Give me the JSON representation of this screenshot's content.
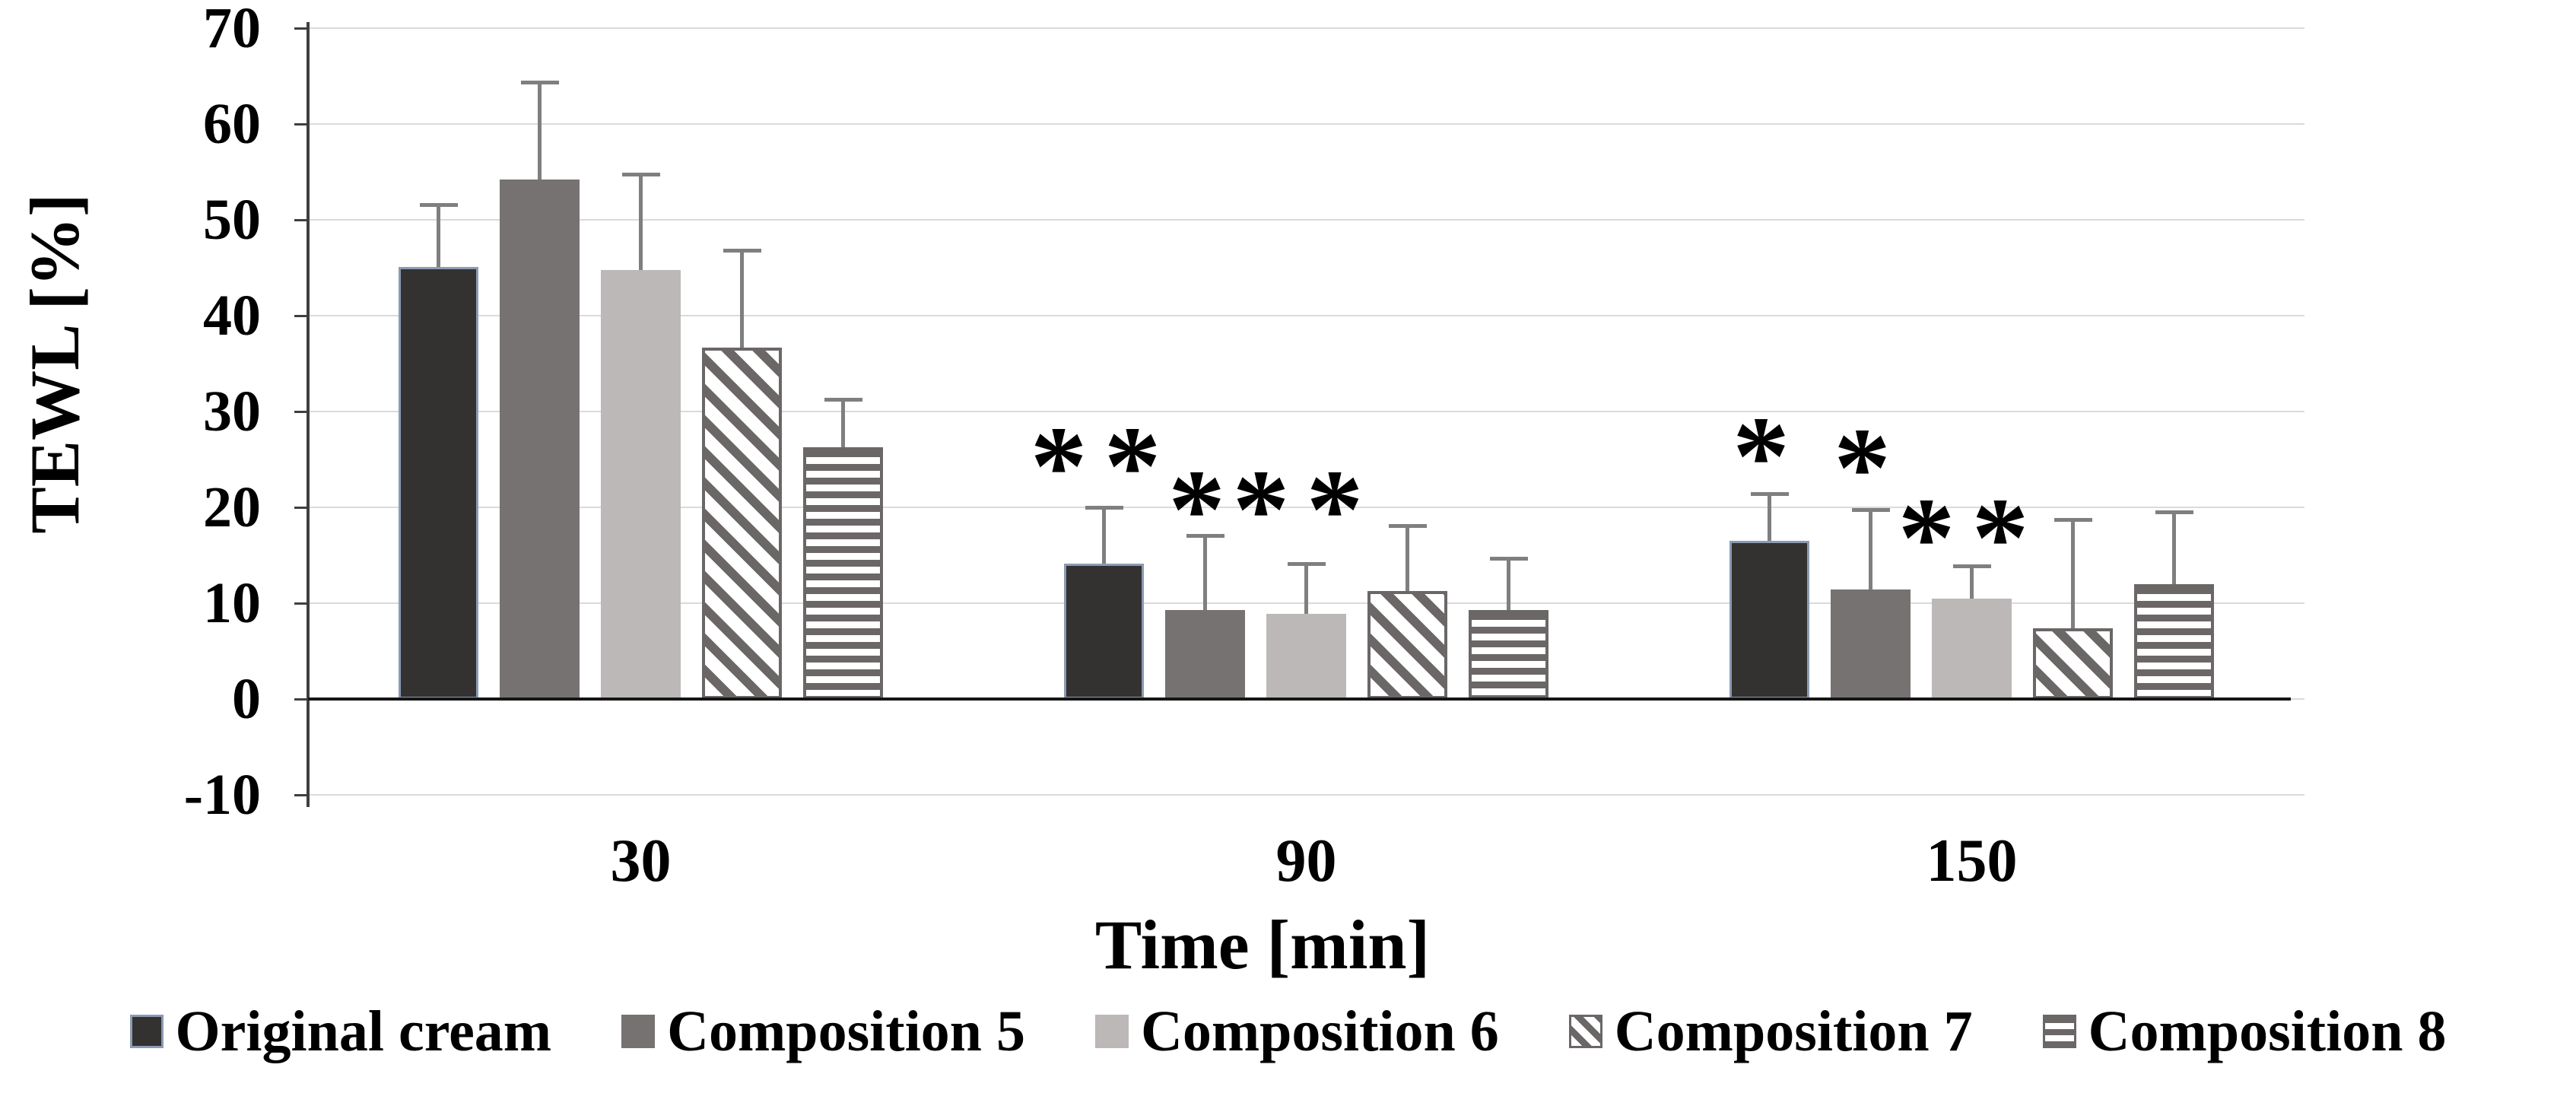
{
  "figure": {
    "background": "#ffffff",
    "significance_marks": {
      "single": "*",
      "double": "**"
    }
  },
  "colors": {
    "original_cream_fill": "#333230",
    "original_cream_border": "#8b9bb4",
    "composition5_fill": "#777272",
    "composition6_fill": "#bcb8b8",
    "hatch_stroke": "#6b6767",
    "error_bar": "#7f7f7f",
    "gridline": "#dadada",
    "axis": "#3f3f3f",
    "text": "#000000"
  },
  "chart_data": {
    "type": "bar",
    "title": "",
    "xlabel": "Time [min]",
    "ylabel": "TEWL [%]",
    "ylim": [
      -10,
      70
    ],
    "ytick_step": 10,
    "yticks": [
      70,
      60,
      50,
      40,
      30,
      20,
      10,
      0,
      -10
    ],
    "grid": true,
    "legend_position": "bottom",
    "categories": [
      "30",
      "90",
      "150"
    ],
    "series": [
      {
        "name": "Original cream",
        "pattern": "solid-dark",
        "values": [
          45.1,
          14.1,
          16.5
        ],
        "errors": [
          6.5,
          5.9,
          4.9
        ],
        "annotations": [
          "",
          "**",
          "*"
        ],
        "annotation_y": [
          null,
          23.5,
          24.5
        ]
      },
      {
        "name": "Composition 5",
        "pattern": "solid-gray",
        "values": [
          54.2,
          9.3,
          11.4
        ],
        "errors": [
          10.2,
          7.8,
          8.4
        ],
        "annotations": [
          "",
          "*",
          "*"
        ],
        "annotation_y": [
          null,
          19.0,
          23.3
        ]
      },
      {
        "name": "Composition 6",
        "pattern": "solid-light",
        "values": [
          44.8,
          8.9,
          10.5
        ],
        "errors": [
          10.0,
          5.2,
          3.4
        ],
        "annotations": [
          "",
          "**",
          "**"
        ],
        "annotation_y": [
          null,
          19.0,
          16.0
        ]
      },
      {
        "name": "Composition 7",
        "pattern": "diagonal-hatch",
        "values": [
          36.7,
          11.3,
          7.4
        ],
        "errors": [
          10.1,
          6.8,
          11.3
        ],
        "annotations": [
          "",
          "",
          ""
        ],
        "annotation_y": [
          null,
          null,
          null
        ]
      },
      {
        "name": "Composition 8",
        "pattern": "horizontal-stripes",
        "values": [
          26.3,
          9.3,
          12.0
        ],
        "errors": [
          5.0,
          5.4,
          7.5
        ],
        "annotations": [
          "",
          "",
          ""
        ],
        "annotation_y": [
          null,
          null,
          null
        ]
      }
    ]
  }
}
